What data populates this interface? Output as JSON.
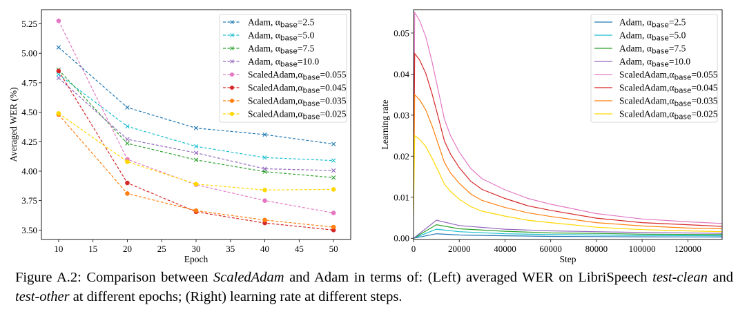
{
  "caption": {
    "label": "Figure A.2:",
    "t1": " Comparison between ",
    "i1": "ScaledAdam",
    "t2": " and Adam in terms of: (Left) averaged WER on LibriSpeech ",
    "i2": "test-clean",
    "t3": " and ",
    "i3": "test-other",
    "t4": " at different epochs; (Right) learning rate at different steps."
  },
  "chart_data": [
    {
      "type": "line",
      "xlabel": "Epoch",
      "ylabel": "Averaged WER (%)",
      "xlim": [
        7.5,
        52.5
      ],
      "ylim": [
        3.42,
        5.37
      ],
      "xticks": [
        10,
        15,
        20,
        25,
        30,
        35,
        40,
        45,
        50
      ],
      "yticks": [
        "3.50",
        "3.75",
        "4.00",
        "4.25",
        "4.50",
        "4.75",
        "5.00",
        "5.25"
      ],
      "grid": false,
      "legend": "top-right",
      "line_style": "dashed",
      "x": [
        10,
        20,
        30,
        40,
        50
      ],
      "series": [
        {
          "prefix": "Adam, α",
          "sub": "base",
          "suffix": "=2.5",
          "color": "#1f77b4",
          "marker": "x",
          "values": [
            5.05,
            4.54,
            4.365,
            4.31,
            4.23
          ]
        },
        {
          "prefix": "Adam, α",
          "sub": "base",
          "suffix": "=5.0",
          "color": "#17becf",
          "marker": "x",
          "values": [
            4.82,
            4.38,
            4.21,
            4.115,
            4.09
          ]
        },
        {
          "prefix": "Adam, α",
          "sub": "base",
          "suffix": "=7.5",
          "color": "#2ca02c",
          "marker": "x",
          "values": [
            4.86,
            4.235,
            4.095,
            3.995,
            3.945
          ]
        },
        {
          "prefix": "Adam, α",
          "sub": "base",
          "suffix": "=10.0",
          "color": "#9467bd",
          "marker": "x",
          "values": [
            4.79,
            4.27,
            4.155,
            4.02,
            4.005
          ]
        },
        {
          "prefix": "ScaledAdam,α",
          "sub": "base",
          "suffix": "=0.055",
          "color": "#e377c2",
          "marker": "o",
          "values": [
            5.275,
            4.1,
            3.885,
            3.75,
            3.645
          ]
        },
        {
          "prefix": "ScaledAdam,α",
          "sub": "base",
          "suffix": "=0.045",
          "color": "#d62728",
          "marker": "o",
          "values": [
            4.85,
            3.9,
            3.655,
            3.56,
            3.5
          ]
        },
        {
          "prefix": "ScaledAdam,α",
          "sub": "base",
          "suffix": "=0.035",
          "color": "#ff7f0e",
          "marker": "o",
          "values": [
            4.48,
            3.81,
            3.665,
            3.585,
            3.525
          ]
        },
        {
          "prefix": "ScaledAdam,α",
          "sub": "base",
          "suffix": "=0.025",
          "color": "#ffd700",
          "marker": "o",
          "values": [
            4.49,
            4.08,
            3.89,
            3.84,
            3.845
          ]
        }
      ]
    },
    {
      "type": "line",
      "xlabel": "Step",
      "ylabel": "Learning rate",
      "xlim": [
        0,
        135000
      ],
      "ylim": [
        -0.0003,
        0.0557
      ],
      "xticks": [
        0,
        20000,
        40000,
        60000,
        80000,
        100000,
        120000
      ],
      "yticks": [
        "0.00",
        "0.01",
        "0.02",
        "0.03",
        "0.04",
        "0.05"
      ],
      "grid": false,
      "legend": "top-right",
      "line_style": "solid",
      "series": [
        {
          "prefix": "Adam, α",
          "sub": "base",
          "suffix": "=2.5",
          "color": "#1f77b4",
          "x": [
            0,
            10000,
            20000,
            40000,
            60000,
            80000,
            100000,
            135000
          ],
          "values": [
            0,
            0.0011,
            0.0008,
            0.0006,
            0.00045,
            0.0004,
            0.00035,
            0.0003
          ]
        },
        {
          "prefix": "Adam, α",
          "sub": "base",
          "suffix": "=5.0",
          "color": "#17becf",
          "x": [
            0,
            10000,
            20000,
            40000,
            60000,
            80000,
            100000,
            135000
          ],
          "values": [
            0,
            0.0022,
            0.0016,
            0.0011,
            0.0009,
            0.0008,
            0.0007,
            0.0006
          ]
        },
        {
          "prefix": "Adam, α",
          "sub": "base",
          "suffix": "=7.5",
          "color": "#2ca02c",
          "x": [
            0,
            10000,
            20000,
            40000,
            60000,
            80000,
            100000,
            135000
          ],
          "values": [
            0,
            0.0033,
            0.0023,
            0.0017,
            0.0013,
            0.0012,
            0.001,
            0.0009
          ]
        },
        {
          "prefix": "Adam, α",
          "sub": "base",
          "suffix": "=10.0",
          "color": "#9467bd",
          "x": [
            0,
            10000,
            20000,
            40000,
            60000,
            80000,
            100000,
            135000
          ],
          "values": [
            0,
            0.0044,
            0.0031,
            0.0022,
            0.0018,
            0.0016,
            0.0014,
            0.0012
          ]
        },
        {
          "prefix": "ScaledAdam,α",
          "sub": "base",
          "suffix": "=0.055",
          "color": "#e377c2",
          "x": [
            0,
            500,
            2700,
            5400,
            8100,
            10800,
            13500,
            16200,
            20000,
            25000,
            30000,
            40000,
            50000,
            60000,
            80000,
            100000,
            120000,
            135000
          ],
          "values": [
            0.0125,
            0.055,
            0.053,
            0.049,
            0.043,
            0.036,
            0.029,
            0.025,
            0.021,
            0.017,
            0.0145,
            0.0118,
            0.0097,
            0.0083,
            0.006,
            0.0047,
            0.004,
            0.0036
          ]
        },
        {
          "prefix": "ScaledAdam,α",
          "sub": "base",
          "suffix": "=0.045",
          "color": "#d62728",
          "x": [
            0,
            500,
            2700,
            5400,
            8100,
            10800,
            13500,
            16200,
            20000,
            25000,
            30000,
            40000,
            50000,
            60000,
            80000,
            100000,
            120000,
            135000
          ],
          "values": [
            0.0102,
            0.045,
            0.0434,
            0.0401,
            0.0352,
            0.0295,
            0.0237,
            0.0205,
            0.0172,
            0.0139,
            0.0119,
            0.0097,
            0.0079,
            0.0068,
            0.0049,
            0.0038,
            0.0033,
            0.0029
          ]
        },
        {
          "prefix": "ScaledAdam,α",
          "sub": "base",
          "suffix": "=0.035",
          "color": "#ff7f0e",
          "x": [
            0,
            500,
            2700,
            5400,
            8100,
            10800,
            13500,
            16200,
            20000,
            25000,
            30000,
            40000,
            50000,
            60000,
            80000,
            100000,
            120000,
            135000
          ],
          "values": [
            0.008,
            0.035,
            0.0337,
            0.0312,
            0.0274,
            0.0229,
            0.0185,
            0.0159,
            0.0134,
            0.0108,
            0.0092,
            0.0075,
            0.0062,
            0.0053,
            0.0038,
            0.003,
            0.0025,
            0.0023
          ]
        },
        {
          "prefix": "ScaledAdam,α",
          "sub": "base",
          "suffix": "=0.025",
          "color": "#ffd700",
          "x": [
            0,
            500,
            2700,
            5400,
            8100,
            10800,
            13500,
            16200,
            20000,
            25000,
            30000,
            40000,
            50000,
            60000,
            80000,
            100000,
            120000,
            135000
          ],
          "values": [
            0.0057,
            0.025,
            0.0241,
            0.0223,
            0.0195,
            0.0164,
            0.0132,
            0.0114,
            0.0095,
            0.0077,
            0.0066,
            0.0054,
            0.0044,
            0.0038,
            0.0027,
            0.0021,
            0.0018,
            0.0016
          ]
        }
      ]
    }
  ]
}
